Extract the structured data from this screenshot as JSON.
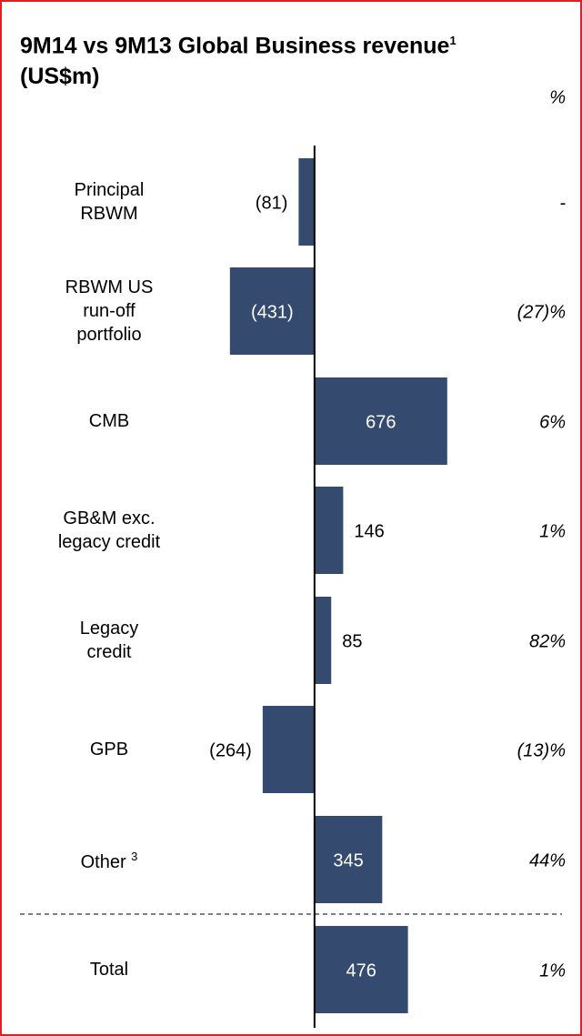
{
  "chart_data": {
    "type": "bar",
    "orientation": "horizontal",
    "title": "9M14 vs 9M13 Global Business revenue",
    "subtitle": "(US$m)",
    "footnotes": [
      "1",
      "3"
    ],
    "change_header": "%",
    "categories": [
      "Principal\nRBWM",
      "RBWM US\nrun-off\nportfolio",
      "CMB",
      "GB&M exc.\nlegacy credit",
      "Legacy\ncredit",
      "GPB",
      "Other",
      "Total"
    ],
    "values": [
      -81,
      -431,
      676,
      146,
      85,
      -264,
      345,
      476
    ],
    "value_labels": [
      "(81)",
      "(431)",
      "676",
      "146",
      "85",
      "(264)",
      "345",
      "476"
    ],
    "change_labels": [
      "-",
      "(27)%",
      "6%",
      "1%",
      "82%",
      "(13)%",
      "44%",
      "1%"
    ],
    "color": "#344a6e",
    "xlim": [
      -1000,
      1270
    ]
  }
}
